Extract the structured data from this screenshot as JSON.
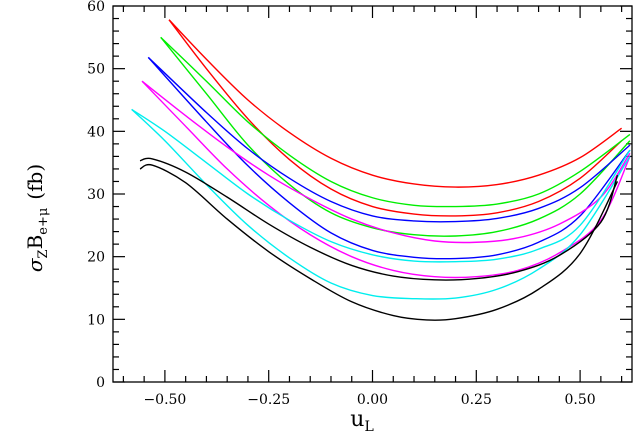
{
  "chart_data": {
    "type": "line",
    "title": "",
    "xlabel": {
      "main": "u",
      "sub": "L"
    },
    "ylabel": {
      "sigma": "σ",
      "sigma_sub": "Z",
      "b": "B",
      "b_sub": "e+μ",
      "unit": "(fb)"
    },
    "xlim": [
      -0.625,
      0.625
    ],
    "ylim": [
      0,
      60
    ],
    "xticks": [
      -0.5,
      -0.25,
      0.0,
      0.25,
      0.5
    ],
    "xtick_labels": [
      "−0.50",
      "−0.25",
      "0.00",
      "0.25",
      "0.50"
    ],
    "yticks": [
      0,
      10,
      20,
      30,
      40,
      50,
      60
    ],
    "ytick_labels": [
      "0",
      "10",
      "20",
      "30",
      "40",
      "50",
      "60"
    ],
    "grid": false,
    "legend": "none",
    "series": [
      {
        "color": "#ff0000",
        "points": [
          [
            -0.49,
            57.8
          ],
          [
            -0.4,
            51.5
          ],
          [
            -0.3,
            45.0
          ],
          [
            -0.2,
            39.8
          ],
          [
            -0.1,
            35.7
          ],
          [
            0.0,
            33.0
          ],
          [
            0.1,
            31.6
          ],
          [
            0.2,
            31.1
          ],
          [
            0.3,
            31.5
          ],
          [
            0.4,
            33.0
          ],
          [
            0.5,
            35.8
          ],
          [
            0.6,
            40.5
          ]
        ]
      },
      {
        "color": "#ff0000",
        "points": [
          [
            -0.49,
            57.8
          ],
          [
            -0.4,
            50.0
          ],
          [
            -0.3,
            42.0
          ],
          [
            -0.2,
            35.5
          ],
          [
            -0.1,
            30.8
          ],
          [
            0.0,
            28.0
          ],
          [
            0.1,
            26.8
          ],
          [
            0.2,
            26.5
          ],
          [
            0.3,
            27.0
          ],
          [
            0.4,
            28.8
          ],
          [
            0.5,
            32.5
          ],
          [
            0.6,
            38.5
          ]
        ]
      },
      {
        "color": "#00ee00",
        "points": [
          [
            -0.51,
            55.0
          ],
          [
            -0.4,
            48.0
          ],
          [
            -0.3,
            41.5
          ],
          [
            -0.2,
            36.2
          ],
          [
            -0.1,
            32.0
          ],
          [
            0.0,
            29.4
          ],
          [
            0.1,
            28.2
          ],
          [
            0.2,
            28.0
          ],
          [
            0.3,
            28.4
          ],
          [
            0.4,
            30.0
          ],
          [
            0.5,
            33.6
          ],
          [
            0.62,
            39.5
          ]
        ]
      },
      {
        "color": "#00ee00",
        "points": [
          [
            -0.51,
            55.0
          ],
          [
            -0.4,
            46.0
          ],
          [
            -0.3,
            37.8
          ],
          [
            -0.2,
            31.5
          ],
          [
            -0.1,
            27.0
          ],
          [
            0.0,
            24.6
          ],
          [
            0.1,
            23.5
          ],
          [
            0.2,
            23.3
          ],
          [
            0.3,
            24.0
          ],
          [
            0.4,
            26.0
          ],
          [
            0.5,
            30.0
          ],
          [
            0.62,
            38.5
          ]
        ]
      },
      {
        "color": "#0000ff",
        "points": [
          [
            -0.54,
            51.8
          ],
          [
            -0.4,
            43.0
          ],
          [
            -0.3,
            37.2
          ],
          [
            -0.2,
            32.5
          ],
          [
            -0.1,
            28.8
          ],
          [
            0.0,
            26.5
          ],
          [
            0.1,
            25.7
          ],
          [
            0.2,
            25.6
          ],
          [
            0.3,
            26.1
          ],
          [
            0.4,
            27.7
          ],
          [
            0.5,
            31.0
          ],
          [
            0.62,
            37.8
          ]
        ]
      },
      {
        "color": "#0000ff",
        "points": [
          [
            -0.54,
            51.8
          ],
          [
            -0.4,
            41.5
          ],
          [
            -0.3,
            34.5
          ],
          [
            -0.2,
            28.6
          ],
          [
            -0.1,
            23.8
          ],
          [
            0.0,
            21.0
          ],
          [
            0.1,
            19.9
          ],
          [
            0.2,
            19.7
          ],
          [
            0.3,
            20.3
          ],
          [
            0.4,
            22.3
          ],
          [
            0.5,
            26.5
          ],
          [
            0.62,
            37.0
          ]
        ]
      },
      {
        "color": "#ff00ff",
        "points": [
          [
            -0.555,
            48.0
          ],
          [
            -0.45,
            42.5
          ],
          [
            -0.35,
            37.5
          ],
          [
            -0.25,
            33.0
          ],
          [
            -0.15,
            29.2
          ],
          [
            -0.05,
            26.0
          ],
          [
            0.05,
            23.8
          ],
          [
            0.15,
            22.5
          ],
          [
            0.25,
            22.3
          ],
          [
            0.35,
            23.0
          ],
          [
            0.45,
            25.2
          ],
          [
            0.55,
            29.5
          ],
          [
            0.62,
            36.5
          ]
        ]
      },
      {
        "color": "#ff00ff",
        "points": [
          [
            -0.555,
            48.0
          ],
          [
            -0.45,
            40.8
          ],
          [
            -0.35,
            34.0
          ],
          [
            -0.25,
            28.2
          ],
          [
            -0.15,
            23.5
          ],
          [
            -0.05,
            20.0
          ],
          [
            0.05,
            17.8
          ],
          [
            0.15,
            16.8
          ],
          [
            0.25,
            16.8
          ],
          [
            0.35,
            17.8
          ],
          [
            0.45,
            20.6
          ],
          [
            0.55,
            25.8
          ],
          [
            0.62,
            36.0
          ]
        ]
      },
      {
        "color": "#00eeee",
        "points": [
          [
            -0.58,
            43.5
          ],
          [
            -0.5,
            40.0
          ],
          [
            -0.4,
            35.0
          ],
          [
            -0.3,
            30.0
          ],
          [
            -0.2,
            25.8
          ],
          [
            -0.1,
            22.4
          ],
          [
            0.0,
            20.3
          ],
          [
            0.1,
            19.3
          ],
          [
            0.2,
            19.2
          ],
          [
            0.3,
            19.6
          ],
          [
            0.4,
            21.2
          ],
          [
            0.5,
            25.0
          ],
          [
            0.62,
            37.0
          ]
        ]
      },
      {
        "color": "#00eeee",
        "points": [
          [
            -0.58,
            43.5
          ],
          [
            -0.5,
            38.5
          ],
          [
            -0.4,
            31.5
          ],
          [
            -0.3,
            25.0
          ],
          [
            -0.2,
            19.8
          ],
          [
            -0.1,
            15.8
          ],
          [
            0.0,
            13.8
          ],
          [
            0.1,
            13.3
          ],
          [
            0.2,
            13.4
          ],
          [
            0.3,
            14.8
          ],
          [
            0.4,
            18.0
          ],
          [
            0.5,
            23.5
          ],
          [
            0.62,
            36.0
          ]
        ]
      },
      {
        "color": "#000000",
        "points": [
          [
            -0.56,
            35.3
          ],
          [
            -0.53,
            35.6
          ],
          [
            -0.45,
            33.5
          ],
          [
            -0.35,
            29.5
          ],
          [
            -0.25,
            25.2
          ],
          [
            -0.15,
            21.5
          ],
          [
            -0.05,
            18.6
          ],
          [
            0.05,
            16.9
          ],
          [
            0.15,
            16.3
          ],
          [
            0.25,
            16.5
          ],
          [
            0.35,
            17.6
          ],
          [
            0.45,
            20.2
          ],
          [
            0.55,
            25.5
          ],
          [
            0.59,
            33.0
          ]
        ]
      },
      {
        "color": "#000000",
        "points": [
          [
            -0.56,
            34.0
          ],
          [
            -0.53,
            34.6
          ],
          [
            -0.45,
            31.8
          ],
          [
            -0.35,
            26.0
          ],
          [
            -0.25,
            20.8
          ],
          [
            -0.15,
            16.5
          ],
          [
            -0.05,
            12.8
          ],
          [
            0.05,
            10.6
          ],
          [
            0.13,
            9.9
          ],
          [
            0.2,
            10.1
          ],
          [
            0.3,
            11.6
          ],
          [
            0.4,
            14.8
          ],
          [
            0.5,
            20.5
          ],
          [
            0.59,
            32.0
          ]
        ]
      }
    ]
  }
}
